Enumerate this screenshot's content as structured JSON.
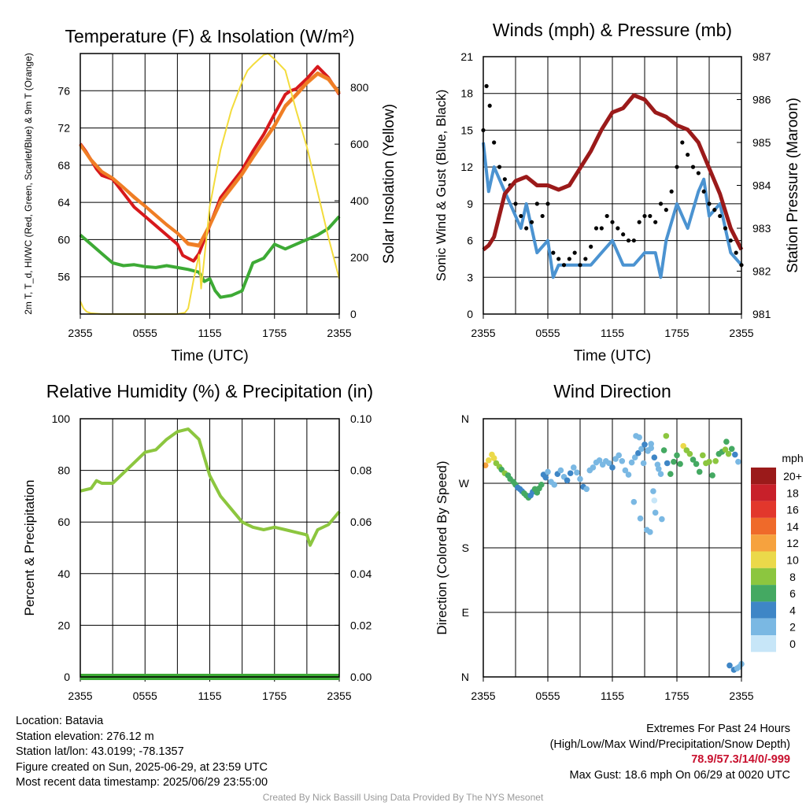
{
  "colors": {
    "temp": "#d7191c",
    "dewpoint": "#3daa35",
    "heat_index": "#ef7d25",
    "t9m": "#f48c2f",
    "solar": "#f3dc3c",
    "sonic_wind": "#4b93d1",
    "gust": "#000000",
    "pressure": "#9b1a1a",
    "rh": "#8cc63f",
    "precip": "#3daa35"
  },
  "footer": {
    "location": "Location: Batavia",
    "elevation": "Station elevation: 276.12 m",
    "latlon": "Station lat/lon: 43.0199; -78.1357",
    "created": "Figure created on Sun, 2025-06-29, at 23:59 UTC",
    "recent": "Most recent data timestamp: 2025/06/29 23:55:00",
    "extremes_title": "Extremes For Past 24 Hours",
    "extremes_sub": "(High/Low/Max Wind/Precipitation/Snow Depth)",
    "extremes_values": "78.9/57.3/14/0/-999",
    "max_gust": "Max Gust: 18.6 mph On 06/29 at 0020 UTC",
    "credit": "Created By Nick Bassill Using Data Provided By The NYS Mesonet"
  },
  "chart_data": [
    {
      "type": "line",
      "title": "Temperature (F) & Insolation (W/m²)",
      "xlabel": "Time (UTC)",
      "ylabel": "2m T, T_d, HI/WC (Red, Green, Scarlet/Blue) & 9m T (Orange)",
      "ylabel_right": "Solar Insolation (Yellow)",
      "x_ticks": [
        "2355",
        "0555",
        "1155",
        "1755",
        "2355"
      ],
      "xlim": [
        0,
        24
      ],
      "ylim": [
        52,
        80
      ],
      "y_ticks": [
        56,
        60,
        64,
        68,
        72,
        76
      ],
      "ylim_right": [
        0,
        920
      ],
      "y_ticks_right": [
        0,
        200,
        400,
        600,
        800
      ],
      "grid": true,
      "series": [
        {
          "name": "2m T",
          "axis": "left",
          "x": [
            0,
            0.5,
            1.5,
            2,
            3,
            4,
            5,
            6,
            7,
            8,
            9,
            9.5,
            10,
            10.5,
            11,
            12,
            13,
            14,
            15,
            16,
            17,
            18,
            19,
            19.5,
            20,
            21,
            22,
            23,
            24
          ],
          "values": [
            70.3,
            69.5,
            67.6,
            66.9,
            66.5,
            65.0,
            63.5,
            62.5,
            61.5,
            60.5,
            59.5,
            58.3,
            58.0,
            57.7,
            58.5,
            61.5,
            64.5,
            66.0,
            67.5,
            69.5,
            71.3,
            73.5,
            75.6,
            76.0,
            76.2,
            77.3,
            78.6,
            77.4,
            75.6
          ]
        },
        {
          "name": "9m T",
          "axis": "left",
          "x": [
            0,
            1,
            2,
            3,
            4,
            5,
            6,
            7,
            8,
            9,
            10,
            11,
            12,
            13,
            14,
            15,
            16,
            17,
            18,
            19,
            20,
            21,
            22,
            23,
            24
          ],
          "values": [
            70.2,
            68.5,
            67.3,
            66.6,
            65.6,
            64.5,
            63.6,
            62.6,
            61.6,
            60.7,
            59.5,
            59.3,
            61.5,
            64.0,
            65.5,
            67.0,
            68.8,
            70.5,
            72.2,
            74.3,
            75.5,
            76.8,
            77.8,
            77.2,
            75.7
          ]
        },
        {
          "name": "HI/WC",
          "axis": "left",
          "x": [
            0,
            1,
            2,
            3,
            4,
            5,
            6,
            7,
            8,
            9,
            10,
            11,
            12,
            13,
            14,
            15,
            16,
            17,
            18,
            19,
            20,
            21,
            22,
            23,
            24
          ],
          "values": [
            70.2,
            68.6,
            67.3,
            66.6,
            65.6,
            64.6,
            63.6,
            62.6,
            61.6,
            60.7,
            59.6,
            59.4,
            61.6,
            64.1,
            65.6,
            67.1,
            68.9,
            70.6,
            72.3,
            74.4,
            75.6,
            76.9,
            77.9,
            77.3,
            75.8
          ]
        },
        {
          "name": "Td",
          "axis": "left",
          "x": [
            0,
            1,
            2,
            3,
            4,
            5,
            6,
            7,
            8,
            9,
            10,
            11,
            11.5,
            12,
            12.5,
            13,
            14,
            15,
            16,
            17,
            18,
            19,
            20,
            21,
            22,
            23,
            24
          ],
          "values": [
            60.5,
            59.5,
            58.5,
            57.5,
            57.2,
            57.3,
            57.1,
            57.0,
            57.2,
            57.0,
            56.8,
            56.5,
            55.5,
            55.8,
            54.5,
            53.8,
            54.0,
            54.5,
            57.5,
            58.0,
            59.5,
            59.0,
            59.5,
            60.0,
            60.5,
            61.2,
            62.5
          ]
        },
        {
          "name": "Solar",
          "axis": "right",
          "x": [
            0,
            0.3,
            0.6,
            1,
            2,
            3,
            4,
            5,
            6,
            7,
            8,
            9,
            9.7,
            10,
            10.5,
            11,
            11.2,
            12,
            13,
            14,
            15,
            15.5,
            16,
            17,
            17.4,
            18,
            19,
            20,
            21,
            22,
            23,
            24
          ],
          "values": [
            45,
            20,
            8,
            3,
            0,
            0,
            0,
            0,
            0,
            0,
            0,
            0,
            5,
            20,
            120,
            210,
            90,
            380,
            580,
            720,
            820,
            860,
            880,
            915,
            920,
            900,
            860,
            720,
            590,
            430,
            270,
            125
          ]
        }
      ]
    },
    {
      "type": "line",
      "title": "Winds (mph) & Pressure (mb)",
      "xlabel": "Time (UTC)",
      "ylabel": "Sonic Wind & Gust (Blue, Black)",
      "ylabel_right": "Station Pressure (Maroon)",
      "x_ticks": [
        "2355",
        "0555",
        "1155",
        "1755",
        "2355"
      ],
      "xlim": [
        0,
        24
      ],
      "ylim": [
        0,
        21
      ],
      "y_ticks": [
        0,
        3,
        6,
        9,
        12,
        15,
        18,
        21
      ],
      "ylim_right": [
        981,
        987
      ],
      "y_ticks_right": [
        981,
        982,
        983,
        984,
        985,
        986,
        987
      ],
      "grid": true,
      "series": [
        {
          "name": "Sonic Wind",
          "axis": "left",
          "x": [
            0,
            0.5,
            1,
            1.5,
            2,
            3,
            3.5,
            4,
            5,
            6,
            6.5,
            7,
            8,
            9,
            10,
            11,
            12,
            13,
            14,
            15,
            16,
            16.5,
            17,
            18,
            19,
            20,
            20.5,
            21,
            22,
            23,
            24
          ],
          "values": [
            14,
            10,
            12,
            11,
            10,
            8,
            7,
            9,
            5,
            6,
            3,
            4,
            4,
            4,
            4,
            5,
            6,
            4,
            4,
            5,
            5,
            3,
            6,
            9,
            7,
            10,
            11,
            8,
            9,
            5,
            4
          ]
        },
        {
          "name": "Gust",
          "axis": "left",
          "x": [
            0,
            0.3,
            0.6,
            1,
            1.5,
            2,
            2.5,
            3,
            3.5,
            4,
            4.5,
            5,
            5.5,
            6,
            6.5,
            7,
            7.5,
            8,
            8.5,
            9,
            9.5,
            10,
            10.5,
            11,
            11.5,
            12,
            12.5,
            13,
            13.5,
            14,
            14.5,
            15,
            15.5,
            16,
            16.5,
            17,
            17.5,
            18,
            18.5,
            19,
            19.5,
            20,
            20.5,
            21,
            21.5,
            22,
            22.5,
            23,
            23.5,
            24
          ],
          "values": [
            15,
            18.6,
            17,
            14,
            12,
            11,
            10.5,
            9,
            8,
            7,
            7.5,
            9,
            8,
            9,
            5,
            4.5,
            4,
            4.5,
            5,
            4,
            4.5,
            5.5,
            7,
            7,
            8,
            7.5,
            7,
            6.5,
            6,
            6,
            7.5,
            8,
            8,
            7.5,
            9,
            8.5,
            10,
            12,
            14,
            13,
            12,
            11.5,
            10,
            9,
            8.5,
            8,
            7,
            6,
            5,
            4
          ]
        },
        {
          "name": "Pressure",
          "axis": "right",
          "x": [
            0,
            0.5,
            1,
            1.5,
            2,
            3,
            4,
            5,
            6,
            7,
            8,
            9,
            10,
            11,
            12,
            13,
            14,
            15,
            16,
            17,
            18,
            19,
            20,
            21,
            22,
            23,
            24
          ],
          "values": [
            982.5,
            982.6,
            982.8,
            983.3,
            983.8,
            984.1,
            984.2,
            984.0,
            984.0,
            983.9,
            984.0,
            984.4,
            984.8,
            985.3,
            985.7,
            985.8,
            986.1,
            986.0,
            985.7,
            985.6,
            985.4,
            985.3,
            985.0,
            984.4,
            983.8,
            983.0,
            982.5
          ]
        }
      ]
    },
    {
      "type": "line",
      "title": "Relative Humidity (%) & Precipitation (in)",
      "xlabel": "",
      "ylabel": "Percent & Precipitation",
      "x_ticks": [
        "2355",
        "0555",
        "1155",
        "1755",
        "2355"
      ],
      "xlim": [
        0,
        24
      ],
      "ylim": [
        0,
        100
      ],
      "y_ticks": [
        0,
        20,
        40,
        60,
        80,
        100
      ],
      "ylim_right": [
        0,
        0.1
      ],
      "y_ticks_right": [
        "0.00",
        "0.02",
        "0.04",
        "0.06",
        "0.08",
        "0.10"
      ],
      "grid": true,
      "series": [
        {
          "name": "RH",
          "axis": "left",
          "x": [
            0,
            1,
            1.5,
            2,
            3,
            4,
            5,
            6,
            7,
            8,
            9,
            10,
            11,
            12,
            13,
            14,
            15,
            16,
            17,
            18,
            19,
            20,
            21,
            21.3,
            22,
            23,
            24
          ],
          "values": [
            72,
            73,
            76,
            75,
            75,
            79,
            83,
            87,
            88,
            92,
            95,
            96,
            92,
            78,
            70,
            65,
            60,
            58,
            57,
            58,
            57,
            56,
            55,
            51,
            57,
            59,
            64
          ]
        },
        {
          "name": "Precip",
          "axis": "right",
          "x": [
            0,
            24
          ],
          "values": [
            0,
            0
          ]
        }
      ]
    },
    {
      "type": "scatter",
      "title": "Wind Direction",
      "xlabel": "",
      "ylabel": "Direction (Colored By Speed)",
      "x_ticks": [
        "2355",
        "0555",
        "1155",
        "1755",
        "2355"
      ],
      "xlim": [
        0,
        24
      ],
      "ylim": [
        0,
        360
      ],
      "y_tick_labels": [
        "N",
        "E",
        "S",
        "W",
        "N"
      ],
      "grid": true,
      "legend_title": "mph",
      "legend_labels": [
        "20+",
        "18",
        "16",
        "14",
        "12",
        "10",
        "8",
        "6",
        "4",
        "2",
        "0"
      ],
      "legend_colors": [
        "#9b1a1a",
        "#c8202a",
        "#e2372c",
        "#ef6a2a",
        "#f6a23e",
        "#ebd94a",
        "#8cc63f",
        "#44a962",
        "#3e86c6",
        "#7ab8e3",
        "#c7e6f8"
      ],
      "series": [
        {
          "name": "Direction",
          "x": [
            0.2,
            0.5,
            0.8,
            1.0,
            1.2,
            1.5,
            1.7,
            2.0,
            2.3,
            2.5,
            2.8,
            3.0,
            3.2,
            3.4,
            3.6,
            3.8,
            4.0,
            4.2,
            4.4,
            4.6,
            4.8,
            5.0,
            5.2,
            5.4,
            5.6,
            5.8,
            6.0,
            6.3,
            6.6,
            6.9,
            7.2,
            7.5,
            7.8,
            8.1,
            8.4,
            8.7,
            9.0,
            9.3,
            9.6,
            9.9,
            10.2,
            10.5,
            10.8,
            11.1,
            11.4,
            11.7,
            12.0,
            12.3,
            12.6,
            12.9,
            13.2,
            13.5,
            13.8,
            14.1,
            14.4,
            14.7,
            15.0,
            15.3,
            15.6,
            15.9,
            16.2,
            16.5,
            16.8,
            17.1,
            17.4,
            17.7,
            18.0,
            18.3,
            18.6,
            18.9,
            19.2,
            19.5,
            19.8,
            20.1,
            20.4,
            20.7,
            21.0,
            21.3,
            21.6,
            21.9,
            22.2,
            22.5,
            22.8,
            23.1,
            23.4,
            23.7,
            14.2,
            14.5,
            14.9,
            15.3,
            15.6,
            15.2,
            15.5,
            16.0,
            16.3,
            15.9,
            15.8,
            22.9,
            23.3,
            23.6,
            23.8,
            24.0,
            14.0,
            14.6,
            16.6,
            17.0,
            22.6
          ],
          "values": [
            295,
            302,
            310,
            305,
            298,
            293,
            289,
            284,
            281,
            276,
            272,
            268,
            264,
            262,
            259,
            256,
            253,
            250,
            253,
            258,
            262,
            257,
            263,
            268,
            282,
            278,
            286,
            272,
            268,
            283,
            288,
            279,
            274,
            284,
            292,
            285,
            276,
            265,
            262,
            288,
            292,
            299,
            302,
            296,
            301,
            298,
            292,
            304,
            309,
            301,
            288,
            282,
            299,
            306,
            312,
            318,
            324,
            315,
            319,
            306,
            296,
            283,
            316,
            298,
            283,
            300,
            309,
            297,
            322,
            316,
            311,
            303,
            297,
            286,
            309,
            298,
            300,
            281,
            301,
            311,
            314,
            317,
            311,
            318,
            310,
            300,
            336,
            334,
            298,
            316,
            325,
            205,
            202,
            229,
            290,
            246,
            259,
            16,
            10,
            12,
            14,
            18,
            244,
            221,
            220,
            336,
            328
          ],
          "speeds": [
            12,
            11,
            10,
            10,
            8,
            8,
            7,
            8,
            7,
            7,
            6,
            6,
            5,
            5,
            5,
            6,
            6,
            6,
            5,
            5,
            6,
            6,
            6,
            6,
            4,
            4,
            3,
            3,
            3,
            4,
            3,
            3,
            4,
            4,
            3,
            3,
            3,
            4,
            3,
            3,
            2,
            3,
            3,
            3,
            3,
            3,
            4,
            3,
            3,
            3,
            3,
            3,
            3,
            3,
            4,
            3,
            4,
            3,
            3,
            5,
            3,
            3,
            6,
            4,
            7,
            6,
            6,
            7,
            10,
            9,
            8,
            7,
            6,
            7,
            8,
            9,
            8,
            6,
            9,
            7,
            6,
            8,
            9,
            6,
            4,
            2,
            3,
            3,
            3,
            3,
            3,
            2,
            3,
            3,
            3,
            1,
            2,
            4,
            4,
            3,
            3,
            2,
            3,
            3,
            2,
            8,
            7
          ]
        }
      ]
    }
  ]
}
